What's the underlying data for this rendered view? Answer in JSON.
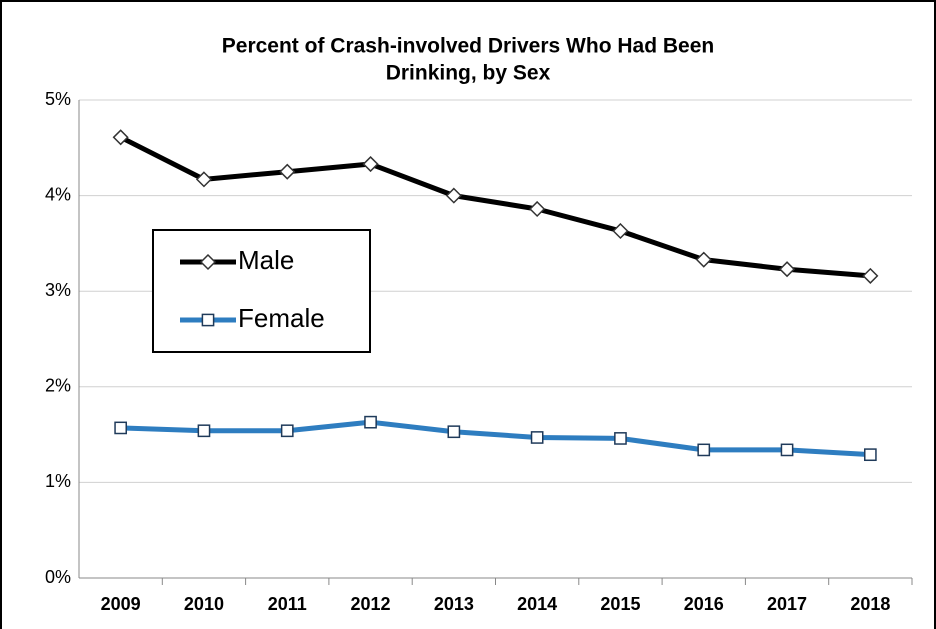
{
  "chart_data": {
    "type": "line",
    "title": [
      "Percent of Crash-involved Drivers Who Had Been",
      "Drinking, by Sex"
    ],
    "categories": [
      "2009",
      "2010",
      "2011",
      "2012",
      "2013",
      "2014",
      "2015",
      "2016",
      "2017",
      "2018"
    ],
    "series": [
      {
        "name": "Male",
        "color": "#000000",
        "marker": "diamond",
        "values": [
          4.61,
          4.17,
          4.25,
          4.33,
          4.0,
          3.86,
          3.63,
          3.33,
          3.23,
          3.16
        ]
      },
      {
        "name": "Female",
        "color": "#2e7dc0",
        "marker": "square",
        "values": [
          1.57,
          1.54,
          1.54,
          1.63,
          1.53,
          1.47,
          1.46,
          1.34,
          1.34,
          1.29
        ]
      }
    ],
    "ylim": [
      0,
      5
    ],
    "yticks": [
      {
        "value": 0,
        "label": "0%"
      },
      {
        "value": 1,
        "label": "1%"
      },
      {
        "value": 2,
        "label": "2%"
      },
      {
        "value": 3,
        "label": "3%"
      },
      {
        "value": 4,
        "label": "4%"
      },
      {
        "value": 5,
        "label": "5%"
      }
    ],
    "grid": true
  }
}
